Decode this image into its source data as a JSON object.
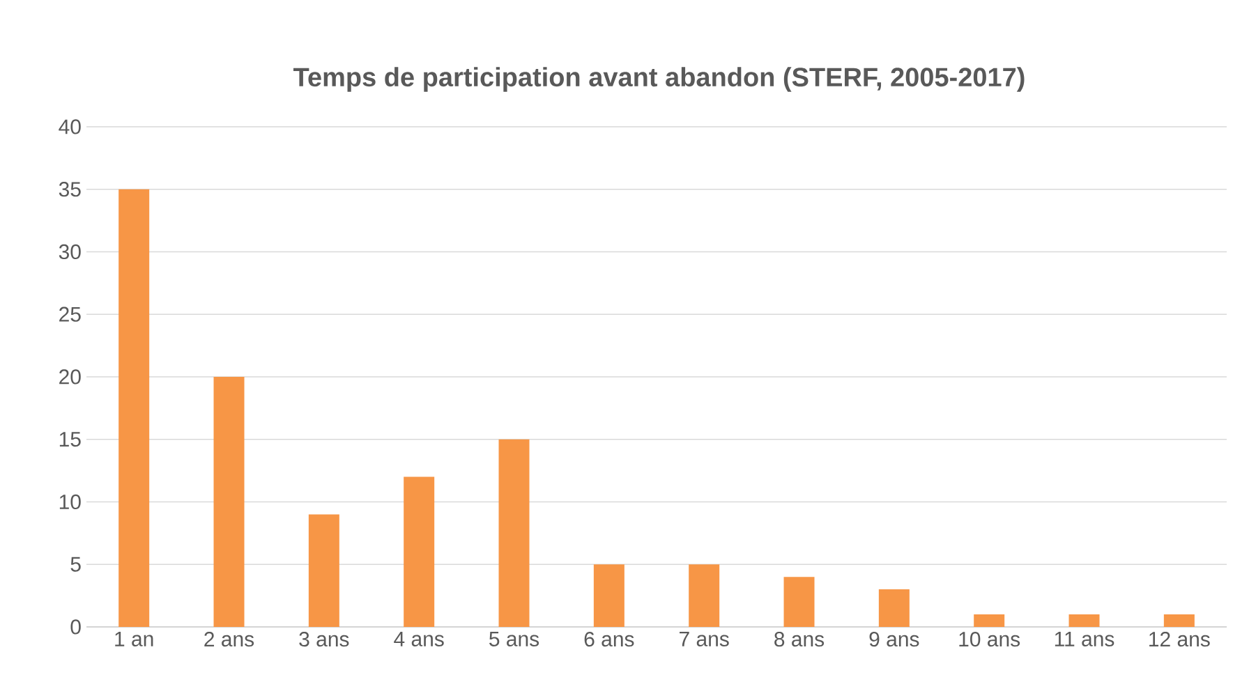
{
  "chart_data": {
    "type": "bar",
    "title": "Temps de participation avant abandon (STERF, 2005-2017)",
    "categories": [
      "1 an",
      "2 ans",
      "3 ans",
      "4 ans",
      "5 ans",
      "6 ans",
      "7 ans",
      "8 ans",
      "9 ans",
      "10 ans",
      "11 ans",
      "12 ans"
    ],
    "values": [
      35,
      20,
      9,
      12,
      15,
      5,
      5,
      4,
      3,
      1,
      1,
      1
    ],
    "color": "#f79646",
    "ylim": [
      0,
      40
    ],
    "yticks": [
      0,
      5,
      10,
      15,
      20,
      25,
      30,
      35,
      40
    ],
    "grid": "y"
  }
}
